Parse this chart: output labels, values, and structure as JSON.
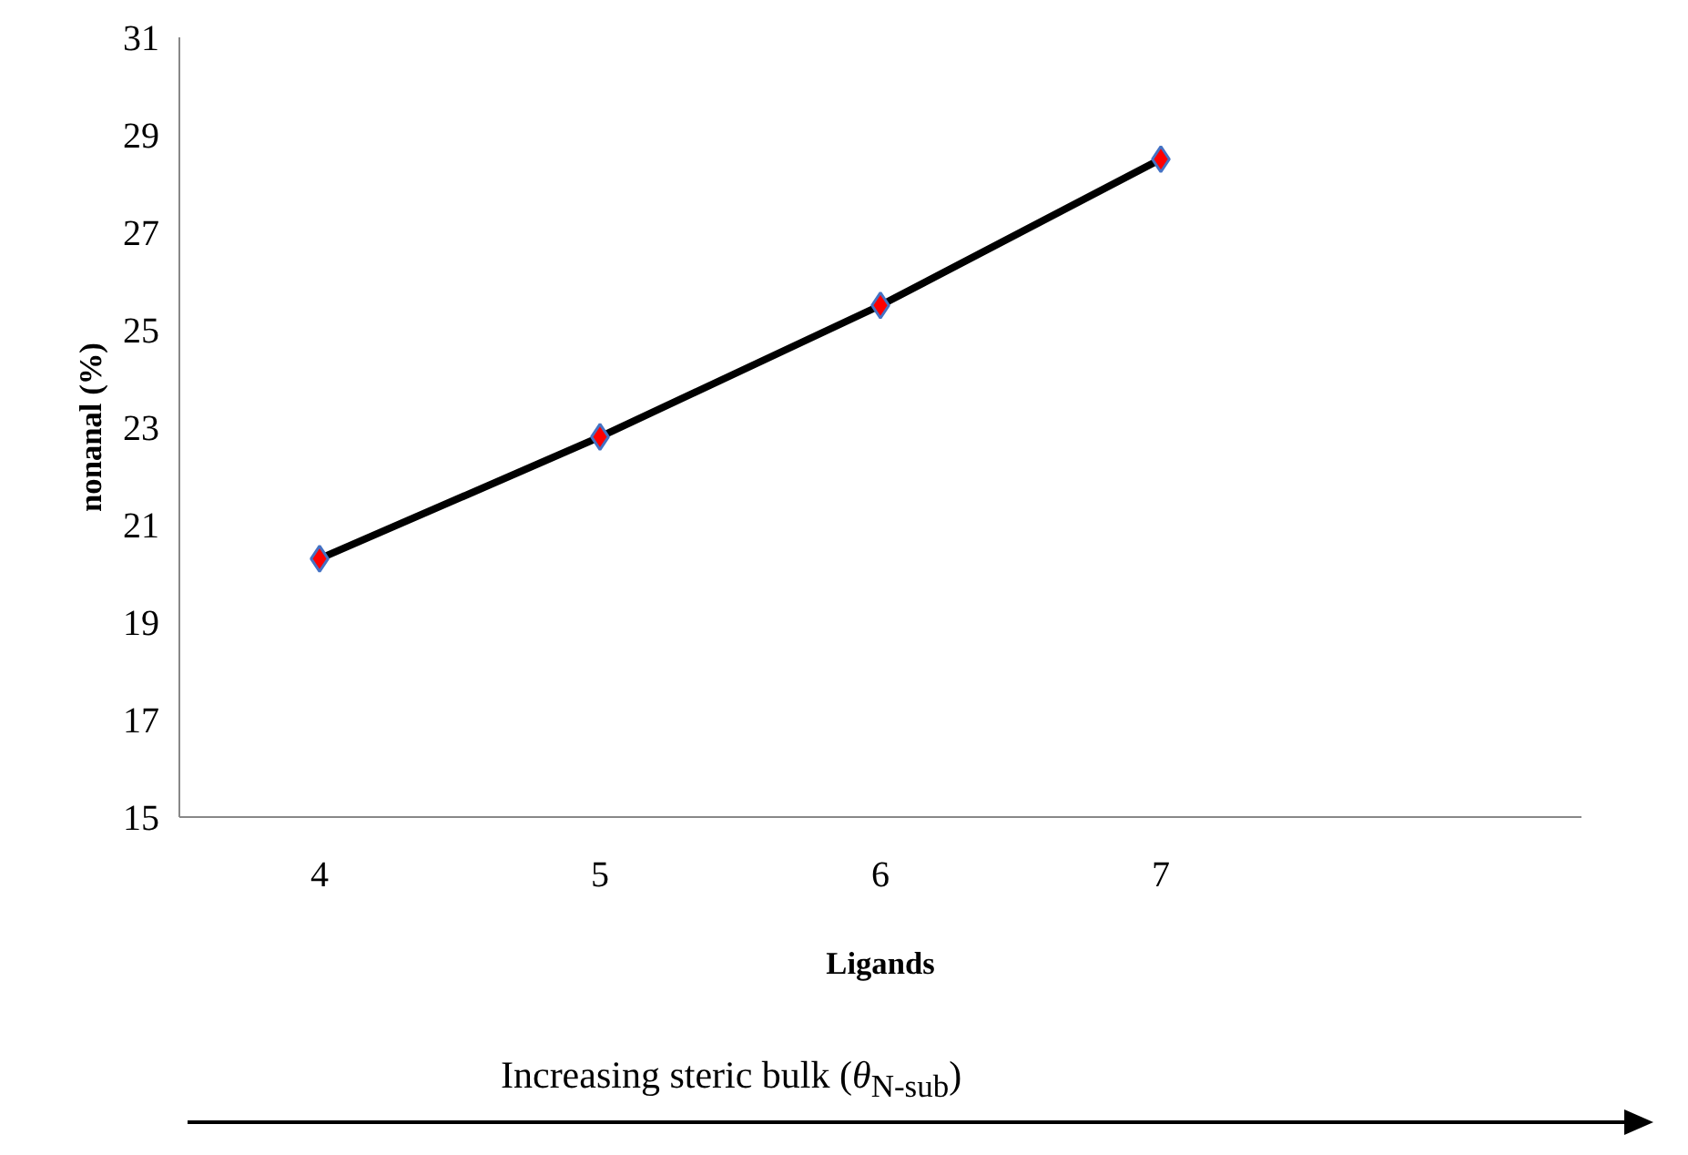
{
  "chart_data": {
    "type": "line",
    "xlabel": "Ligands",
    "ylabel": "nonanal (%)",
    "categories": [
      "4",
      "5",
      "6",
      "7",
      null
    ],
    "series": [
      {
        "color": "#000000",
        "values": [
          20.3,
          22.8,
          25.5,
          28.5,
          null
        ]
      }
    ],
    "ylim": [
      15,
      31
    ],
    "yticks": [
      15,
      17,
      19,
      21,
      23,
      25,
      27,
      29,
      31
    ],
    "marker": "diamond",
    "grid": false,
    "annotations": [
      "Increasing steric bulk (θ$_{N-sub}$)"
    ]
  }
}
